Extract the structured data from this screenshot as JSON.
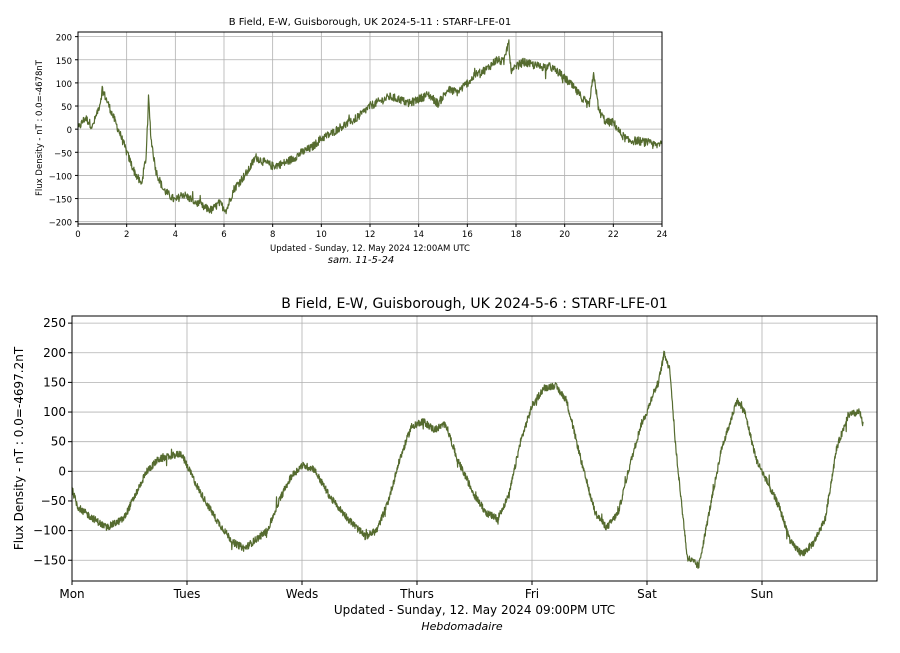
{
  "chart_data": [
    {
      "type": "line",
      "title": "B Field, E-W,  Guisborough, UK 2024-5-11 : STARF-LFE-01",
      "ylabel": "Flux Density - nT   :   0.0=-4678nT",
      "xlabel": "Updated - Sunday, 12. May 2024 12:00AM UTC",
      "caption": "sam. 11-5-24",
      "xlim": [
        0,
        24
      ],
      "ylim": [
        -205,
        210
      ],
      "xticks": [
        0,
        2,
        4,
        6,
        8,
        10,
        12,
        14,
        16,
        18,
        20,
        22,
        24
      ],
      "xtick_labels": [
        "0",
        "2",
        "4",
        "6",
        "8",
        "10",
        "12",
        "14",
        "16",
        "18",
        "20",
        "22",
        "24"
      ],
      "yticks": [
        200,
        150,
        100,
        50,
        0,
        -50,
        -100,
        -150,
        -200
      ],
      "ytick_labels": [
        "200",
        "150",
        "100",
        "50",
        "0",
        "−50",
        "−100",
        "−150",
        "−200"
      ],
      "grid": true,
      "line_color": "#556b2f",
      "series": [
        {
          "x": [
            0,
            0.3,
            0.6,
            0.9,
            1.0,
            1.2,
            1.5,
            1.8,
            2.0,
            2.3,
            2.6,
            2.8,
            2.9,
            3.0,
            3.2,
            3.5,
            3.8,
            4.0,
            4.3,
            4.6,
            4.9,
            5.2,
            5.5,
            5.8,
            6.1,
            6.4,
            6.7,
            7.0,
            7.3,
            7.6,
            8.0,
            8.4,
            8.8,
            9.2,
            9.6,
            10.0,
            10.4,
            10.8,
            11.2,
            11.6,
            12.0,
            12.4,
            12.8,
            13.2,
            13.6,
            14.0,
            14.4,
            14.8,
            15.2,
            15.6,
            16.0,
            16.4,
            16.8,
            17.2,
            17.5,
            17.7,
            17.8,
            18.0,
            18.3,
            18.6,
            19.0,
            19.4,
            19.8,
            20.2,
            20.6,
            21.0,
            21.2,
            21.4,
            21.7,
            22.0,
            22.3,
            22.6,
            23.0,
            23.4,
            23.8,
            24.0
          ],
          "y": [
            0,
            25,
            5,
            55,
            85,
            60,
            20,
            -20,
            -50,
            -90,
            -120,
            -60,
            70,
            -20,
            -90,
            -130,
            -145,
            -155,
            -140,
            -150,
            -160,
            -170,
            -175,
            -160,
            -175,
            -130,
            -110,
            -90,
            -60,
            -70,
            -80,
            -75,
            -65,
            -50,
            -40,
            -20,
            -10,
            5,
            15,
            30,
            50,
            60,
            70,
            65,
            55,
            65,
            75,
            55,
            85,
            80,
            100,
            120,
            130,
            150,
            145,
            190,
            120,
            135,
            145,
            140,
            135,
            135,
            120,
            100,
            75,
            50,
            120,
            40,
            15,
            15,
            -10,
            -25,
            -25,
            -30,
            -35,
            -25
          ]
        }
      ]
    },
    {
      "type": "line",
      "title": "B Field, E-W,  Guisborough, UK 2024-5-6 : STARF-LFE-01",
      "ylabel": "Flux Density - nT   :   0.0=-4697.2nT",
      "xlabel": "Updated - Sunday, 12. May 2024 09:00PM UTC",
      "caption": "Hebdomadaire",
      "xlim": [
        0,
        7
      ],
      "ylim": [
        -185,
        262
      ],
      "xticks": [
        0,
        1,
        2,
        3,
        4,
        5,
        6
      ],
      "xtick_labels": [
        "Mon",
        "Tues",
        "Weds",
        "Thurs",
        "Fri",
        "Sat",
        "Sun"
      ],
      "yticks": [
        250,
        200,
        150,
        100,
        50,
        0,
        -50,
        -100,
        -150
      ],
      "ytick_labels": [
        "250",
        "200",
        "150",
        "100",
        "50",
        "0",
        "−50",
        "−100",
        "−150"
      ],
      "grid": true,
      "line_color": "#556b2f",
      "series": [
        {
          "x": [
            0,
            0.05,
            0.15,
            0.3,
            0.45,
            0.55,
            0.65,
            0.75,
            0.85,
            0.95,
            1.0,
            1.1,
            1.25,
            1.4,
            1.5,
            1.7,
            1.8,
            1.9,
            2.0,
            2.1,
            2.25,
            2.4,
            2.55,
            2.65,
            2.75,
            2.85,
            2.95,
            3.05,
            3.15,
            3.25,
            3.35,
            3.5,
            3.6,
            3.7,
            3.8,
            3.9,
            4.0,
            4.1,
            4.2,
            4.3,
            4.45,
            4.55,
            4.65,
            4.75,
            4.85,
            4.95,
            5.0,
            5.05,
            5.1,
            5.15,
            5.2,
            5.25,
            5.35,
            5.45,
            5.55,
            5.65,
            5.72,
            5.78,
            5.85,
            5.95,
            6.05,
            6.15,
            6.25,
            6.35,
            6.45,
            6.55,
            6.65,
            6.75,
            6.85,
            6.88
          ],
          "y": [
            -30,
            -60,
            -75,
            -95,
            -80,
            -40,
            0,
            20,
            25,
            30,
            10,
            -30,
            -80,
            -120,
            -130,
            -100,
            -50,
            -10,
            10,
            5,
            -45,
            -80,
            -110,
            -100,
            -50,
            20,
            75,
            85,
            70,
            80,
            20,
            -40,
            -70,
            -80,
            -40,
            50,
            110,
            140,
            145,
            120,
            0,
            -70,
            -95,
            -70,
            10,
            80,
            100,
            130,
            150,
            200,
            170,
            40,
            -145,
            -160,
            -60,
            40,
            80,
            120,
            100,
            20,
            -20,
            -60,
            -120,
            -140,
            -120,
            -80,
            40,
            95,
            100,
            75
          ]
        }
      ]
    }
  ]
}
